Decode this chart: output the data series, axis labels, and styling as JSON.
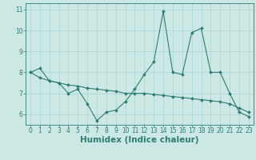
{
  "xlabel": "Humidex (Indice chaleur)",
  "x_values": [
    0,
    1,
    2,
    3,
    4,
    5,
    6,
    7,
    8,
    9,
    10,
    11,
    12,
    13,
    14,
    15,
    16,
    17,
    18,
    19,
    20,
    21,
    22,
    23
  ],
  "line1_y": [
    8.0,
    8.2,
    7.6,
    7.5,
    7.0,
    7.2,
    6.5,
    5.7,
    6.1,
    6.2,
    6.6,
    7.2,
    7.9,
    8.5,
    10.9,
    8.0,
    7.9,
    9.9,
    10.1,
    8.0,
    8.0,
    7.0,
    6.1,
    5.9
  ],
  "line2_y": [
    8.0,
    7.75,
    7.6,
    7.5,
    7.4,
    7.35,
    7.25,
    7.2,
    7.15,
    7.1,
    7.0,
    7.0,
    7.0,
    6.95,
    6.9,
    6.85,
    6.8,
    6.75,
    6.7,
    6.65,
    6.6,
    6.5,
    6.3,
    6.1
  ],
  "line_color": "#2e7d6e",
  "bg_color": "#cce8e4",
  "grid_color": "#aad4d0",
  "ylim": [
    5.5,
    11.3
  ],
  "xlim": [
    -0.5,
    23.5
  ],
  "yticks": [
    6,
    7,
    8,
    9,
    10,
    11
  ],
  "xticks": [
    0,
    1,
    2,
    3,
    4,
    5,
    6,
    7,
    8,
    9,
    10,
    11,
    12,
    13,
    14,
    15,
    16,
    17,
    18,
    19,
    20,
    21,
    22,
    23
  ],
  "tick_fontsize": 5.5,
  "label_fontsize": 7.5
}
